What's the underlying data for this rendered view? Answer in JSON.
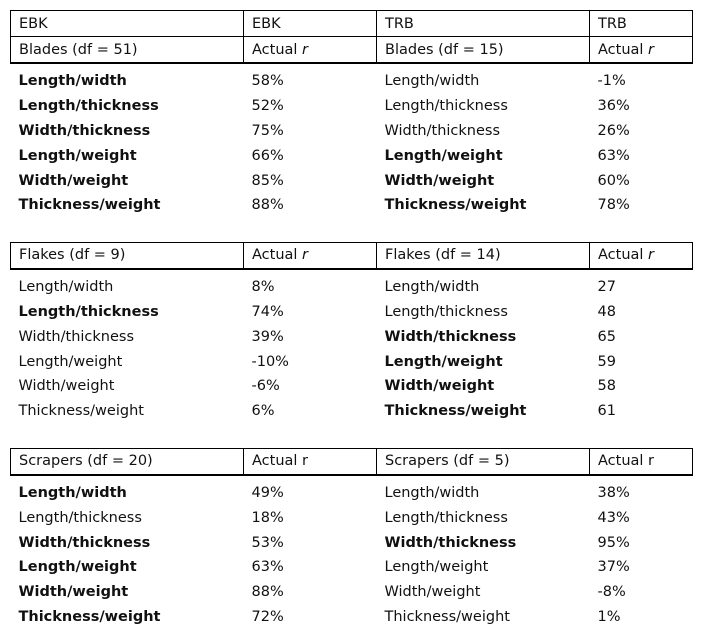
{
  "header": {
    "col1": "EBK",
    "col2": "EBK",
    "col3": "TRB",
    "col4": "TRB"
  },
  "sections": [
    {
      "left_title": "Blades (df = 51)",
      "left_stat": "Actual",
      "left_stat_var": "r",
      "right_title": "Blades (df = 15)",
      "right_stat": "Actual",
      "right_stat_var": "r",
      "rows": [
        {
          "left_label": "Length/width",
          "left_value": "58%",
          "right_label": "Length/width",
          "right_value": "-1%"
        },
        {
          "left_label": "Length/thickness",
          "left_value": "52%",
          "right_label": "Length/thickness",
          "right_value": "36%"
        },
        {
          "left_label": "Width/thickness",
          "left_value": "75%",
          "right_label": "Width/thickness",
          "right_value": "26%"
        },
        {
          "left_label": "Length/weight",
          "left_value": "66%",
          "right_label": "Length/weight",
          "right_value": "63%"
        },
        {
          "left_label": "Width/weight",
          "left_value": "85%",
          "right_label": "Width/weight",
          "right_value": "60%"
        },
        {
          "left_label": "Thickness/weight",
          "left_value": "88%",
          "right_label": "Thickness/weight",
          "right_value": "78%"
        }
      ]
    },
    {
      "left_title": "Flakes (df = 9)",
      "left_stat": "Actual",
      "left_stat_var": "r",
      "right_title": "Flakes (df = 14)",
      "right_stat": "Actual",
      "right_stat_var": "r",
      "rows": [
        {
          "left_label": "Length/width",
          "left_value": "8%",
          "right_label": "Length/width",
          "right_value": "27"
        },
        {
          "left_label": "Length/thickness",
          "left_value": "74%",
          "right_label": "Length/thickness",
          "right_value": "48"
        },
        {
          "left_label": "Width/thickness",
          "left_value": "39%",
          "right_label": "Width/thickness",
          "right_value": "65"
        },
        {
          "left_label": "Length/weight",
          "left_value": "-10%",
          "right_label": "Length/weight",
          "right_value": "59"
        },
        {
          "left_label": "Width/weight",
          "left_value": "-6%",
          "right_label": "Width/weight",
          "right_value": "58"
        },
        {
          "left_label": "Thickness/weight",
          "left_value": "6%",
          "right_label": "Thickness/weight",
          "right_value": "61"
        }
      ]
    },
    {
      "left_title": "Scrapers (df = 20)",
      "left_stat": "Actual r",
      "right_title": "Scrapers (df = 5)",
      "right_stat": "Actual r",
      "rows": [
        {
          "left_label": "Length/width",
          "left_value": "49%",
          "right_label": "Length/width",
          "right_value": "38%"
        },
        {
          "left_label": "Length/thickness",
          "left_value": "18%",
          "right_label": "Length/thickness",
          "right_value": "43%"
        },
        {
          "left_label": "Width/thickness",
          "left_value": "53%",
          "right_label": "Width/thickness",
          "right_value": "95%"
        },
        {
          "left_label": "Length/weight",
          "left_value": "63%",
          "right_label": "Length/weight",
          "right_value": "37%"
        },
        {
          "left_label": "Width/weight",
          "left_value": "88%",
          "right_label": "Width/weight",
          "right_value": "-8%"
        },
        {
          "left_label": "Thickness/weight",
          "left_value": "72%",
          "right_label": "Thickness/weight",
          "right_value": "1%"
        }
      ]
    }
  ]
}
